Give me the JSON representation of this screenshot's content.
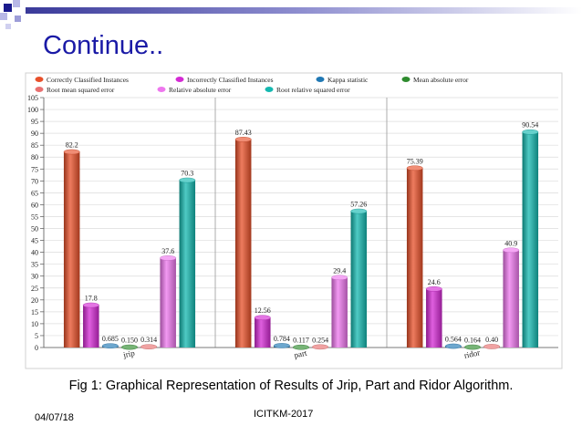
{
  "slide": {
    "title": "Continue..",
    "caption": "Fig 1: Graphical Representation of  Results of Jrip, Part and Ridor  Algorithm.",
    "date": "04/07/18",
    "footer": "ICITKM-2017"
  },
  "chart_data": {
    "type": "bar",
    "categories": [
      "jrip",
      "part",
      "ridor"
    ],
    "series": [
      {
        "name": "Correctly Classified Instances",
        "color": "#e8502a",
        "values": [
          82.2,
          87.43,
          75.39
        ],
        "labels": [
          "82.2",
          "87.43",
          "75.39"
        ]
      },
      {
        "name": "Incorrectly Classified Instances",
        "color": "#d42ad4",
        "values": [
          17.8,
          12.56,
          24.6
        ],
        "labels": [
          "17.8",
          "12.56",
          "24.6"
        ]
      },
      {
        "name": "Kappa statistic",
        "color": "#1f78b4",
        "values": [
          0.685,
          0.784,
          0.564
        ],
        "labels": [
          "0.685",
          "0.784",
          "0.564"
        ]
      },
      {
        "name": "Mean absolute error",
        "color": "#2e8b2e",
        "values": [
          0.15,
          0.117,
          0.164
        ],
        "labels": [
          "0.150",
          "0.117",
          "0.164"
        ]
      },
      {
        "name": "Root mean squared error",
        "color": "#e87070",
        "values": [
          0.314,
          0.254,
          0.4
        ],
        "labels": [
          "0.314",
          "0.254",
          "0.40"
        ]
      },
      {
        "name": "Relative absolute error",
        "color": "#ee77ee",
        "values": [
          37.6,
          29.4,
          40.9
        ],
        "labels": [
          "37.6",
          "29.4",
          "40.9"
        ]
      },
      {
        "name": "Root relative squared error",
        "color": "#14b8b0",
        "values": [
          70.3,
          57.26,
          90.54
        ],
        "labels": [
          "70.3",
          "57.26",
          "90.54"
        ]
      }
    ],
    "y_ticks": [
      0,
      5,
      10,
      15,
      20,
      25,
      30,
      35,
      40,
      45,
      50,
      55,
      60,
      65,
      70,
      75,
      80,
      85,
      90,
      95,
      100,
      105
    ],
    "ylim": [
      0,
      105
    ],
    "grid": true,
    "legend_position": "top"
  }
}
